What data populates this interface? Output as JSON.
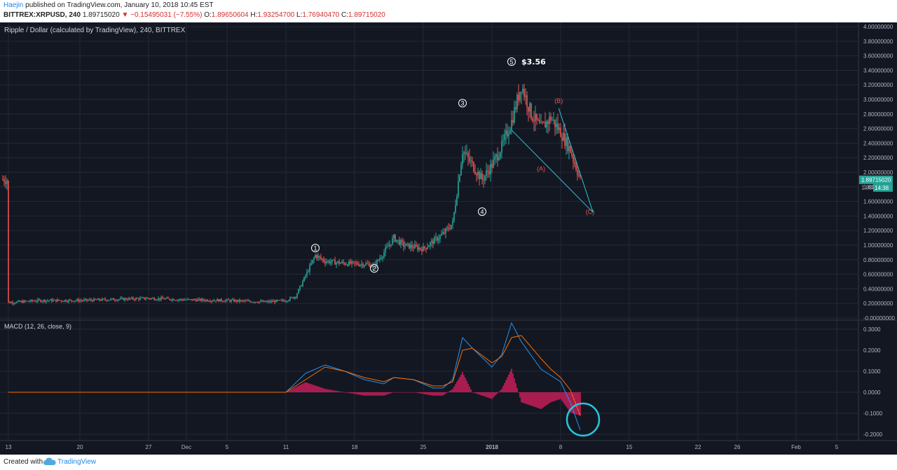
{
  "header": {
    "author": "Haejin",
    "published": "published on TradingView.com, January 10, 2018 10:45 EST",
    "symbol": "BITTREX:XRPUSD, 240",
    "last": "1.89715020",
    "change": "−0.15495031 (−7.55%)",
    "o_label": "O:",
    "o_value": "1.89650604",
    "h_label": "H:",
    "h_value": "1.93254700",
    "l_label": "L:",
    "l_value": "1.76940470",
    "c_label": "C:",
    "c_value": "1.89715020",
    "down_arrow": "▼"
  },
  "footer": {
    "created_with": "Created with",
    "brand": "TradingView",
    "logo_icon": "tradingview-cloud-icon"
  },
  "colors": {
    "background": "#131722",
    "grid": "#242837",
    "up": "#26a69a",
    "down": "#ef5350",
    "macd": "#2196f3",
    "signal": "#ff6d00",
    "histogram": "#e91e63",
    "trendline": "#26c6da",
    "wave_label": "#ffffff",
    "corrective_label": "#ef5350"
  },
  "chart_data": {
    "type": "candlestick",
    "title": "Ripple / Dollar (calculated by TradingView), 240, BITTREX",
    "price_axis": {
      "ticks": [
        "4.00000000",
        "3.80000000",
        "3.60000000",
        "3.40000000",
        "3.20000000",
        "3.00000000",
        "2.80000000",
        "2.60000000",
        "2.40000000",
        "2.20000000",
        "2.00000000",
        "1.80000000",
        "1.60000000",
        "1.40000000",
        "1.20000000",
        "1.00000000",
        "0.80000000",
        "0.60000000",
        "0.40000000",
        "0.20000000",
        "-0.00000000"
      ],
      "range": [
        -0.02,
        4.02
      ],
      "last_price_label": "1.89715020",
      "countdown_label": "14:38",
      "partial_label": "1.800"
    },
    "time_axis": {
      "ticks": [
        "13",
        "20",
        "27",
        "Dec",
        "5",
        "11",
        "18",
        "25",
        "2018",
        "8",
        "15",
        "22",
        "26",
        "Feb",
        "5"
      ],
      "bold_ticks": [
        "2018"
      ]
    },
    "price_path": [
      [
        "13",
        0.21
      ],
      [
        "16",
        0.24
      ],
      [
        "20",
        0.24
      ],
      [
        "27",
        0.27
      ],
      [
        "Dec 1",
        0.25
      ],
      [
        "Dec 5",
        0.24
      ],
      [
        "Dec 9",
        0.22
      ],
      [
        "Dec 11",
        0.24
      ],
      [
        "Dec 12",
        0.3
      ],
      [
        "Dec 13",
        0.58
      ],
      [
        "Dec 14",
        0.86
      ],
      [
        "Dec 15",
        0.78
      ],
      [
        "Dec 17",
        0.75
      ],
      [
        "Dec 19",
        0.74
      ],
      [
        "Dec 20",
        0.72
      ],
      [
        "Dec 21",
        0.9
      ],
      [
        "Dec 22",
        1.1
      ],
      [
        "Dec 23",
        1.0
      ],
      [
        "Dec 25",
        0.95
      ],
      [
        "Dec 26",
        1.05
      ],
      [
        "Dec 27",
        1.15
      ],
      [
        "Dec 28",
        1.3
      ],
      [
        "Dec 29",
        2.3
      ],
      [
        "Dec 30",
        2.1
      ],
      [
        "Dec 31",
        1.9
      ],
      [
        "Jan 1",
        2.1
      ],
      [
        "Jan 2",
        2.35
      ],
      [
        "Jan 3",
        2.7
      ],
      [
        "Jan 4",
        3.2
      ],
      [
        "Jan 5",
        2.8
      ],
      [
        "Jan 6",
        2.6
      ],
      [
        "Jan 7",
        2.75
      ],
      [
        "Jan 8",
        2.55
      ],
      [
        "Jan 9",
        2.3
      ],
      [
        "Jan 10",
        1.9
      ]
    ],
    "annotations": {
      "waves": [
        {
          "label": "①",
          "date": "Dec 14",
          "price": 0.96
        },
        {
          "label": "②",
          "date": "Dec 20",
          "price": 0.68
        },
        {
          "label": "③",
          "date": "Dec 29",
          "price": 2.95
        },
        {
          "label": "④",
          "date": "Dec 31",
          "price": 1.46
        },
        {
          "label": "⑤",
          "date": "Jan 3",
          "price": 3.52
        }
      ],
      "peak_label": "$3.56",
      "corrective": [
        {
          "label": "(A)",
          "date": "Jan 6",
          "price": 2.02
        },
        {
          "label": "(B)",
          "date": "Jan 7.8",
          "price": 2.95
        },
        {
          "label": "(C)",
          "date": "Jan 11",
          "price": 1.43
        }
      ]
    },
    "macd": {
      "title": "MACD (12, 26, close, 9)",
      "ticks": [
        "0.3000",
        "0.2000",
        "0.1000",
        "0.0000",
        "-0.1000",
        "-0.2000"
      ],
      "range": [
        -0.23,
        0.34
      ],
      "macd_line": [
        [
          "13",
          0.0
        ],
        [
          "Dec 9",
          0.0
        ],
        [
          "Dec 11",
          0.0
        ],
        [
          "Dec 13",
          0.09
        ],
        [
          "Dec 15",
          0.13
        ],
        [
          "Dec 17",
          0.1
        ],
        [
          "Dec 19",
          0.06
        ],
        [
          "Dec 21",
          0.04
        ],
        [
          "Dec 22",
          0.07
        ],
        [
          "Dec 24",
          0.06
        ],
        [
          "Dec 26",
          0.02
        ],
        [
          "Dec 27",
          0.02
        ],
        [
          "Dec 28",
          0.06
        ],
        [
          "Dec 29",
          0.26
        ],
        [
          "Dec 30",
          0.21
        ],
        [
          "Jan 1",
          0.12
        ],
        [
          "Jan 2",
          0.18
        ],
        [
          "Jan 3",
          0.33
        ],
        [
          "Jan 4",
          0.24
        ],
        [
          "Jan 6",
          0.11
        ],
        [
          "Jan 7",
          0.08
        ],
        [
          "Jan 8",
          0.05
        ],
        [
          "Jan 9",
          -0.05
        ],
        [
          "Jan 10",
          -0.18
        ]
      ],
      "signal_line": [
        [
          "13",
          0.0
        ],
        [
          "Dec 9",
          0.0
        ],
        [
          "Dec 11",
          0.0
        ],
        [
          "Dec 13",
          0.06
        ],
        [
          "Dec 15",
          0.12
        ],
        [
          "Dec 17",
          0.1
        ],
        [
          "Dec 19",
          0.07
        ],
        [
          "Dec 21",
          0.05
        ],
        [
          "Dec 22",
          0.07
        ],
        [
          "Dec 24",
          0.06
        ],
        [
          "Dec 26",
          0.03
        ],
        [
          "Dec 27",
          0.03
        ],
        [
          "Dec 28",
          0.05
        ],
        [
          "Dec 29",
          0.2
        ],
        [
          "Dec 30",
          0.21
        ],
        [
          "Jan 1",
          0.14
        ],
        [
          "Jan 2",
          0.17
        ],
        [
          "Jan 3",
          0.26
        ],
        [
          "Jan 4",
          0.27
        ],
        [
          "Jan 6",
          0.16
        ],
        [
          "Jan 7",
          0.11
        ],
        [
          "Jan 8",
          0.07
        ],
        [
          "Jan 9",
          0.01
        ],
        [
          "Jan 10",
          -0.11
        ]
      ]
    }
  }
}
